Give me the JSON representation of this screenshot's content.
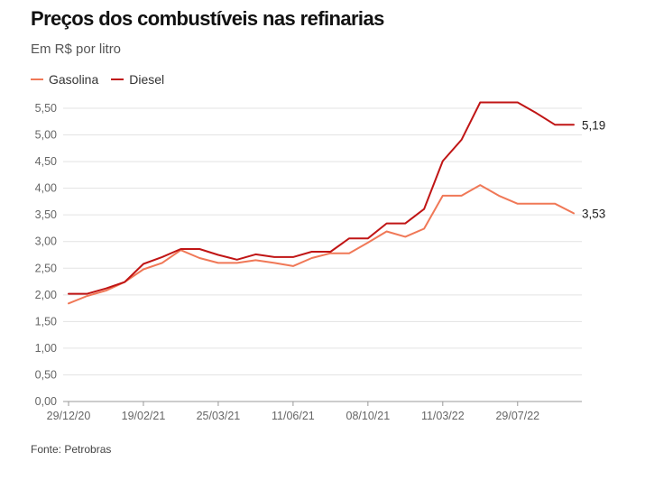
{
  "chart_data": {
    "type": "line",
    "title": "Preços dos combustíveis nas refinarias",
    "subtitle": "Em R$ por litro",
    "source": "Fonte: Petrobras",
    "x_tick_labels": [
      "29/12/20",
      "19/02/21",
      "25/03/21",
      "11/06/21",
      "08/10/21",
      "11/03/22",
      "29/07/22"
    ],
    "x_tick_index": [
      0,
      4,
      8,
      12,
      16,
      20,
      24
    ],
    "y_ticks": [
      "0,00",
      "0,50",
      "1,00",
      "1,50",
      "2,00",
      "2,50",
      "3,00",
      "3,50",
      "4,00",
      "4,50",
      "5,00",
      "5,50"
    ],
    "ylim": [
      0,
      5.5
    ],
    "grid": true,
    "legend_placement": "top-left",
    "series": [
      {
        "name": "Gasolina",
        "color": "#f07857",
        "end_label": "3,53",
        "values": [
          1.84,
          1.98,
          2.08,
          2.24,
          2.48,
          2.6,
          2.84,
          2.69,
          2.6,
          2.6,
          2.65,
          2.6,
          2.54,
          2.69,
          2.78,
          2.78,
          2.98,
          3.19,
          3.09,
          3.24,
          3.86,
          3.86,
          4.06,
          3.86,
          3.71,
          3.71,
          3.71,
          3.53
        ]
      },
      {
        "name": "Diesel",
        "color": "#c01515",
        "end_label": "5,19",
        "values": [
          2.02,
          2.02,
          2.12,
          2.24,
          2.58,
          2.71,
          2.86,
          2.86,
          2.75,
          2.66,
          2.76,
          2.71,
          2.71,
          2.81,
          2.81,
          3.06,
          3.06,
          3.34,
          3.34,
          3.61,
          4.51,
          4.91,
          5.61,
          5.61,
          5.61,
          5.41,
          5.19,
          5.19
        ]
      }
    ]
  }
}
